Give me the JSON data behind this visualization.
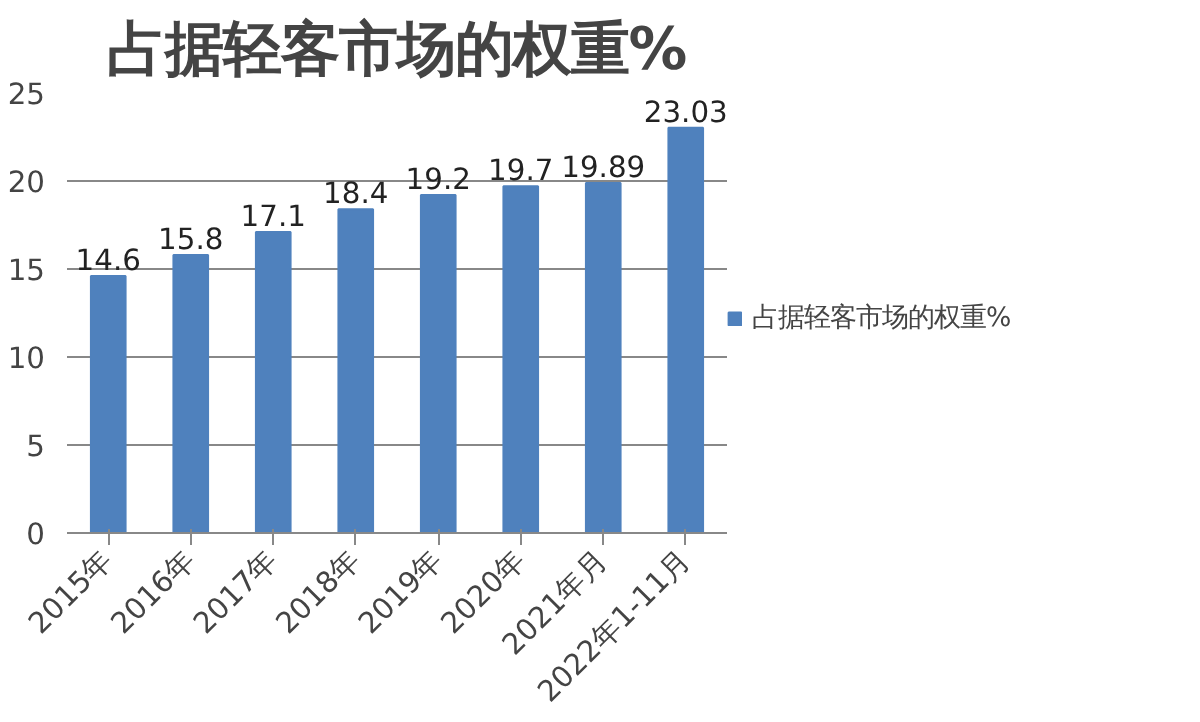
{
  "chart_data": {
    "type": "bar",
    "title": "占据轻客市场的权重%",
    "categories": [
      "2015年",
      "2016年",
      "2017年",
      "2018年",
      "2019年",
      "2020年",
      "2021年月",
      "2022年1-11月"
    ],
    "series": [
      {
        "name": "占据轻客市场的权重%",
        "color": "#4f81bd",
        "values": [
          14.6,
          15.8,
          17.1,
          18.4,
          19.2,
          19.7,
          19.89,
          23.03
        ]
      }
    ],
    "ylim": [
      0,
      25
    ],
    "yticks": [
      0,
      5,
      10,
      15,
      20,
      25
    ],
    "grid": "y",
    "legend": "right",
    "data_labels": true
  }
}
